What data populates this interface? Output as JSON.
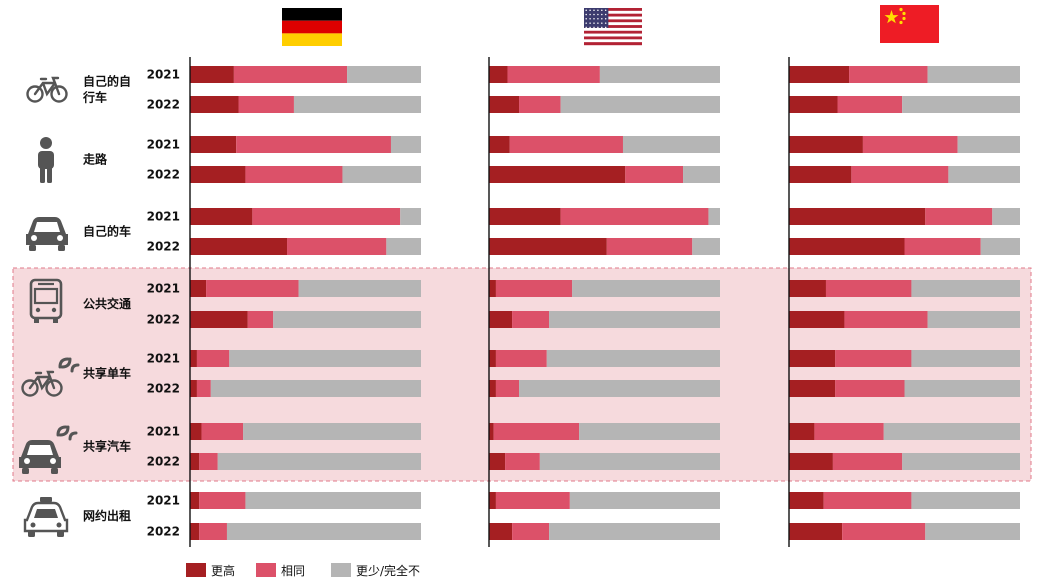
{
  "colors": {
    "higher": "#a51f22",
    "same": "#dc5169",
    "less": "#b5b5b5",
    "highlight_fill": "#f6dadd",
    "highlight_border": "#e07a8a",
    "axis": "#111111",
    "icon": "#555555"
  },
  "chart_data": {
    "type": "bar",
    "orientation": "horizontal",
    "stacked": true,
    "normalized": true,
    "xlim": [
      0,
      100
    ],
    "grid": false,
    "legend_position": "bottom",
    "panels": [
      {
        "icon": "germany-flag-icon"
      },
      {
        "icon": "usa-flag-icon"
      },
      {
        "icon": "china-flag-icon"
      }
    ],
    "series": [
      {
        "name": "更高",
        "color": "#a51f22"
      },
      {
        "name": "相同",
        "color": "#dc5169"
      },
      {
        "name": "更少/完全不",
        "color": "#b5b5b5"
      }
    ],
    "modes": [
      {
        "label": [
          "自己的自",
          "行车"
        ],
        "icon": "bicycle-icon",
        "highlight": false,
        "rows": [
          {
            "year": "2021",
            "values": [
              [
                19,
                49,
                32
              ],
              [
                8,
                40,
                52
              ],
              [
                26,
                34,
                40
              ]
            ]
          },
          {
            "year": "2022",
            "values": [
              [
                21,
                24,
                55
              ],
              [
                13,
                18,
                69
              ],
              [
                21,
                28,
                51
              ]
            ]
          }
        ]
      },
      {
        "label": [
          "走路"
        ],
        "icon": "person-walking-icon",
        "highlight": false,
        "rows": [
          {
            "year": "2021",
            "values": [
              [
                20,
                67,
                13
              ],
              [
                9,
                49,
                42
              ],
              [
                32,
                41,
                27
              ]
            ]
          },
          {
            "year": "2022",
            "values": [
              [
                24,
                42,
                34
              ],
              [
                59,
                25,
                16
              ],
              [
                27,
                42,
                31
              ]
            ]
          }
        ]
      },
      {
        "label": [
          "自己的车"
        ],
        "icon": "car-icon",
        "highlight": false,
        "rows": [
          {
            "year": "2021",
            "values": [
              [
                27,
                64,
                9
              ],
              [
                31,
                64,
                5
              ],
              [
                59,
                29,
                12
              ]
            ]
          },
          {
            "year": "2022",
            "values": [
              [
                42,
                43,
                15
              ],
              [
                51,
                37,
                12
              ],
              [
                50,
                33,
                17
              ]
            ]
          }
        ]
      },
      {
        "label": [
          "公共交通"
        ],
        "icon": "bus-icon",
        "highlight": true,
        "rows": [
          {
            "year": "2021",
            "values": [
              [
                7,
                40,
                53
              ],
              [
                3,
                33,
                64
              ],
              [
                16,
                37,
                47
              ]
            ]
          },
          {
            "year": "2022",
            "values": [
              [
                25,
                11,
                64
              ],
              [
                10,
                16,
                74
              ],
              [
                24,
                36,
                40
              ]
            ]
          }
        ]
      },
      {
        "label": [
          "共享单车"
        ],
        "icon": "shared-bicycle-icon",
        "highlight": true,
        "rows": [
          {
            "year": "2021",
            "values": [
              [
                3,
                14,
                83
              ],
              [
                3,
                22,
                75
              ],
              [
                20,
                33,
                47
              ]
            ]
          },
          {
            "year": "2022",
            "values": [
              [
                3,
                6,
                91
              ],
              [
                3,
                10,
                87
              ],
              [
                20,
                30,
                50
              ]
            ]
          }
        ]
      },
      {
        "label": [
          "共享汽车"
        ],
        "icon": "shared-car-icon",
        "highlight": true,
        "rows": [
          {
            "year": "2021",
            "values": [
              [
                5,
                18,
                77
              ],
              [
                2,
                37,
                61
              ],
              [
                11,
                30,
                59
              ]
            ]
          },
          {
            "year": "2022",
            "values": [
              [
                4,
                8,
                88
              ],
              [
                7,
                15,
                78
              ],
              [
                19,
                30,
                51
              ]
            ]
          }
        ]
      },
      {
        "label": [
          "网约出租"
        ],
        "icon": "taxi-icon",
        "highlight": false,
        "rows": [
          {
            "year": "2021",
            "values": [
              [
                4,
                20,
                76
              ],
              [
                3,
                32,
                65
              ],
              [
                15,
                38,
                47
              ]
            ]
          },
          {
            "year": "2022",
            "values": [
              [
                4,
                12,
                84
              ],
              [
                10,
                16,
                74
              ],
              [
                23,
                36,
                41
              ]
            ]
          }
        ]
      }
    ]
  }
}
